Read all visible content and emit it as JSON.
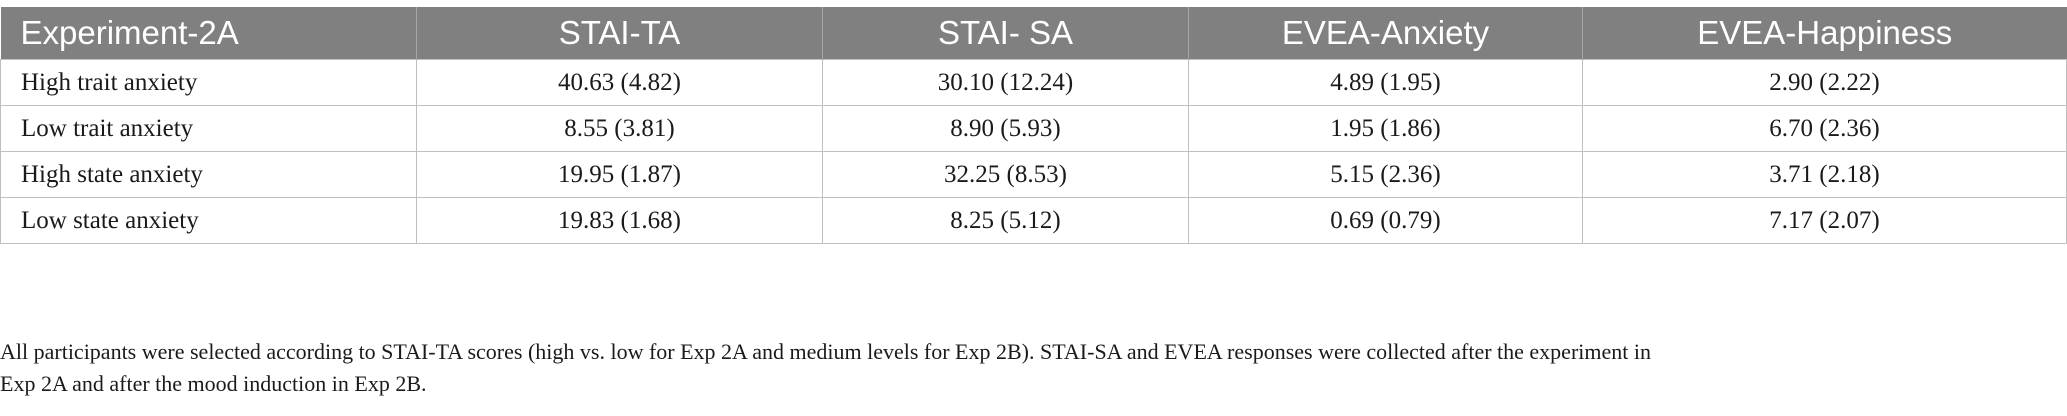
{
  "table": {
    "headers": [
      "Experiment-2A",
      "STAI-TA",
      "STAI- SA",
      "EVEA-Anxiety",
      "EVEA-Happiness"
    ],
    "rows": [
      {
        "label": "High trait anxiety",
        "cells": [
          "40.63 (4.82)",
          "30.10 (12.24)",
          "4.89 (1.95)",
          "2.90 (2.22)"
        ]
      },
      {
        "label": "Low trait anxiety",
        "cells": [
          "8.55 (3.81)",
          "8.90 (5.93)",
          "1.95 (1.86)",
          "6.70 (2.36)"
        ]
      },
      {
        "label": "High state anxiety",
        "cells": [
          "19.95 (1.87)",
          "32.25 (8.53)",
          "5.15 (2.36)",
          "3.71 (2.18)"
        ]
      },
      {
        "label": "Low state anxiety",
        "cells": [
          "19.83 (1.68)",
          "8.25 (5.12)",
          "0.69 (0.79)",
          "7.17 (2.07)"
        ]
      }
    ]
  },
  "footnote": {
    "line1": "All participants were selected according to STAI-TA scores (high vs. low for Exp 2A and medium levels for Exp 2B). STAI-SA and EVEA responses were collected after the experiment in",
    "line2": "Exp 2A and after the mood induction in Exp 2B."
  }
}
